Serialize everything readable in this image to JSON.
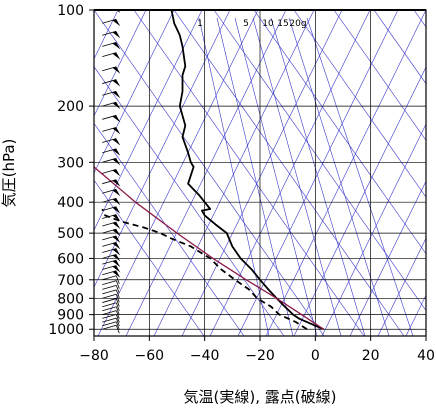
{
  "chart_data": {
    "type": "line",
    "xlabel": "気温(実線), 露点(破線)",
    "ylabel": "気圧(hPa)",
    "xlim": [
      -80,
      40
    ],
    "ylim": [
      1050,
      100
    ],
    "y_scale": "log",
    "x_ticks": [
      -80,
      -60,
      -40,
      -20,
      0,
      20,
      40
    ],
    "x_tick_labels": [
      "−80",
      "−60",
      "−40",
      "−20",
      "0",
      "20",
      "40"
    ],
    "y_ticks": [
      100,
      200,
      300,
      400,
      500,
      600,
      700,
      800,
      900,
      1000
    ],
    "y_tick_labels": [
      "100",
      "200",
      "300",
      "400",
      "500",
      "600",
      "700",
      "800",
      "900",
      "1000"
    ],
    "mixing_ratio_labels": [
      "1",
      "5",
      "10",
      "15",
      "20g"
    ],
    "colors": {
      "temperature": "#000000",
      "dewpoint": "#000000",
      "parcel": "#8b1a4a",
      "adiabats": "#3a3acc",
      "grid": "#000000",
      "wind_barbs": "#000000"
    },
    "series": [
      {
        "name": "気温",
        "style": "solid",
        "points": [
          [
            1000,
            3
          ],
          [
            975,
            0
          ],
          [
            950,
            -3
          ],
          [
            925,
            -6
          ],
          [
            900,
            -8
          ],
          [
            850,
            -11
          ],
          [
            800,
            -14
          ],
          [
            750,
            -17
          ],
          [
            700,
            -20
          ],
          [
            650,
            -23
          ],
          [
            600,
            -27
          ],
          [
            550,
            -30
          ],
          [
            500,
            -32
          ],
          [
            470,
            -36
          ],
          [
            440,
            -40
          ],
          [
            425,
            -41
          ],
          [
            420,
            -38
          ],
          [
            400,
            -40
          ],
          [
            380,
            -42
          ],
          [
            350,
            -46
          ],
          [
            310,
            -44
          ],
          [
            300,
            -45
          ],
          [
            280,
            -46
          ],
          [
            250,
            -48
          ],
          [
            230,
            -47
          ],
          [
            200,
            -49
          ],
          [
            180,
            -48
          ],
          [
            160,
            -48
          ],
          [
            150,
            -47
          ],
          [
            130,
            -48
          ],
          [
            120,
            -49
          ],
          [
            110,
            -51
          ],
          [
            100,
            -52
          ]
        ]
      },
      {
        "name": "露点",
        "style": "dashed",
        "points": [
          [
            1000,
            -3
          ],
          [
            950,
            -7
          ],
          [
            900,
            -13
          ],
          [
            850,
            -16
          ],
          [
            800,
            -21
          ],
          [
            750,
            -24
          ],
          [
            700,
            -29
          ],
          [
            650,
            -34
          ],
          [
            600,
            -38
          ],
          [
            550,
            -45
          ],
          [
            520,
            -52
          ],
          [
            500,
            -56
          ],
          [
            480,
            -62
          ],
          [
            460,
            -70
          ],
          [
            440,
            -76
          ],
          [
            420,
            -77
          ]
        ]
      },
      {
        "name": "parcel",
        "style": "solid",
        "points": [
          [
            1000,
            3
          ],
          [
            900,
            -5
          ],
          [
            800,
            -14
          ],
          [
            700,
            -25
          ],
          [
            600,
            -37
          ],
          [
            500,
            -50
          ],
          [
            400,
            -65
          ],
          [
            300,
            -82
          ]
        ]
      }
    ],
    "wind_barbs": {
      "x_position": -77,
      "pressures": [
        1000,
        975,
        950,
        925,
        900,
        875,
        850,
        825,
        800,
        775,
        750,
        725,
        700,
        675,
        650,
        625,
        600,
        575,
        550,
        525,
        500,
        475,
        450,
        425,
        400,
        375,
        350,
        325,
        300,
        280,
        260,
        240,
        220,
        200,
        185,
        170,
        155,
        140,
        130,
        120,
        110,
        100
      ]
    },
    "grid": true
  }
}
